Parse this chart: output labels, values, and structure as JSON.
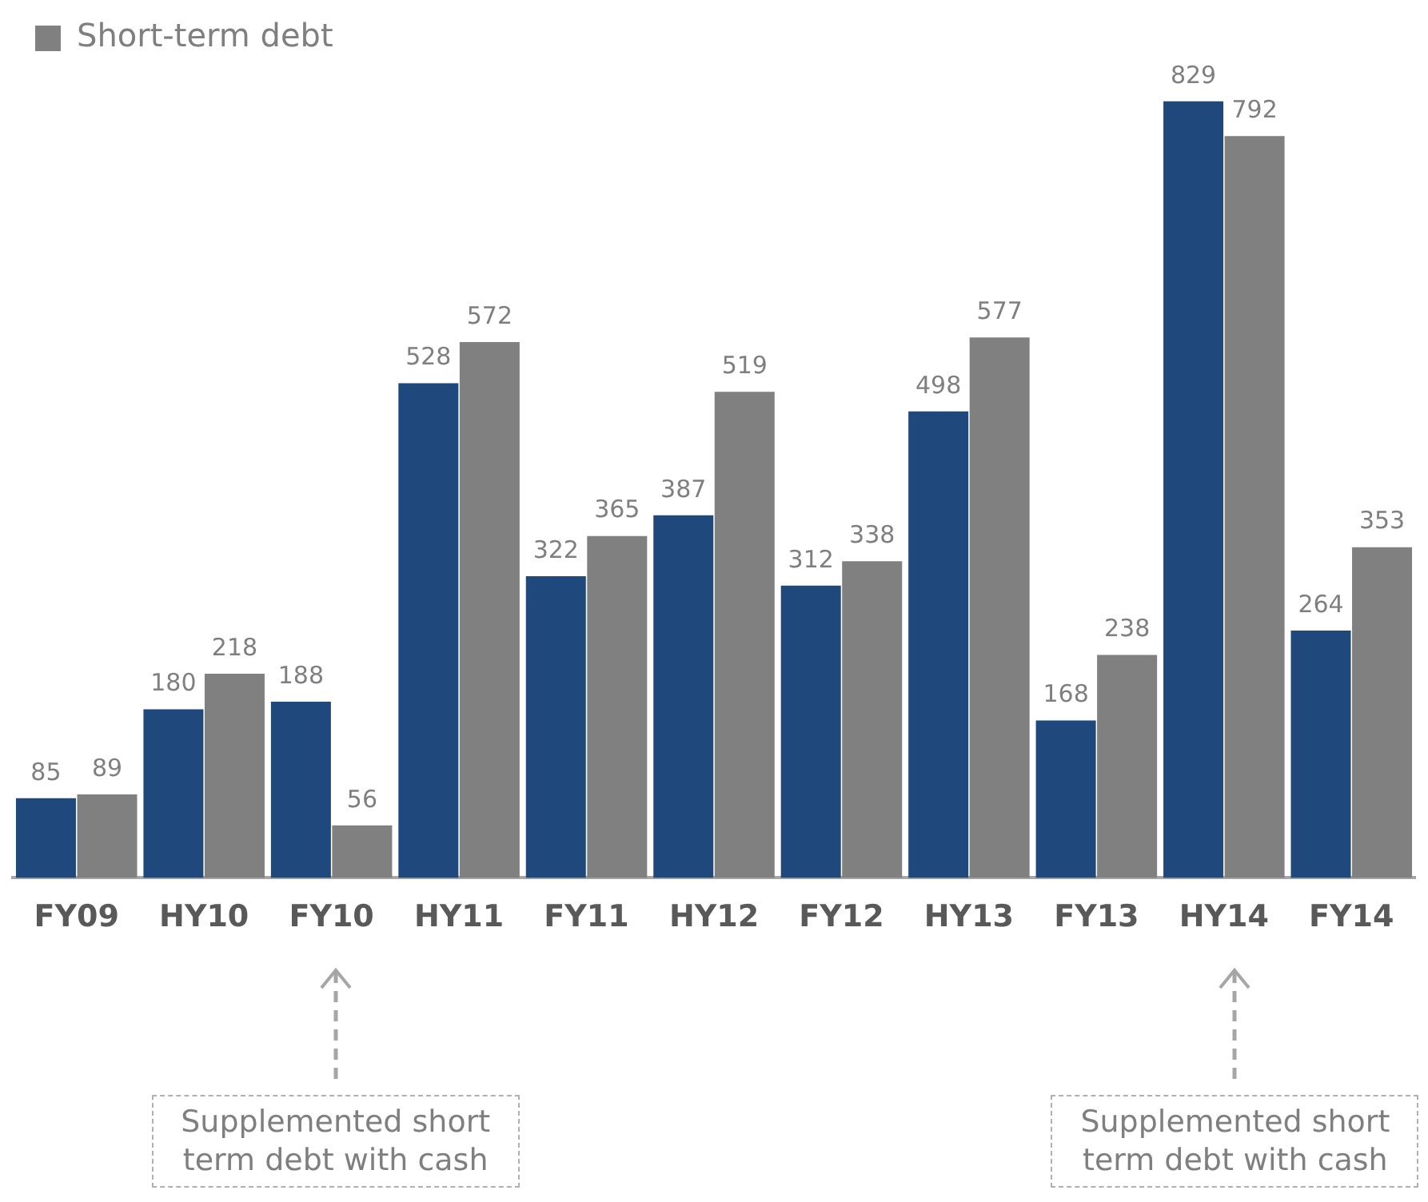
{
  "chart_data": {
    "type": "bar",
    "categories": [
      "FY09",
      "HY10",
      "FY10",
      "HY11",
      "FY11",
      "HY12",
      "FY12",
      "HY13",
      "FY13",
      "HY14",
      "FY14"
    ],
    "series": [
      {
        "color": "#1f497d",
        "values": [
          85,
          180,
          188,
          528,
          322,
          387,
          312,
          498,
          168,
          829,
          264
        ]
      },
      {
        "name": "Short-term debt",
        "color": "#808080",
        "values": [
          89,
          218,
          56,
          572,
          365,
          519,
          338,
          577,
          238,
          792,
          353
        ]
      }
    ],
    "data_labels": true,
    "legend": "top left",
    "grid": false,
    "annotations": [
      "Supplemented short term debt with cash",
      "Supplemented short term debt with cash"
    ]
  }
}
